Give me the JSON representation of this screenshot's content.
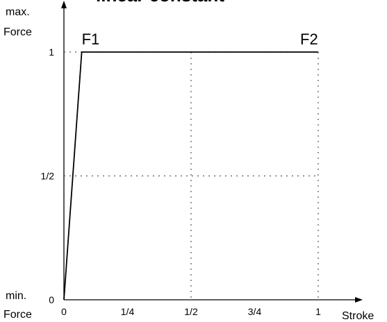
{
  "chart_data": {
    "type": "line",
    "title": "linear constant",
    "y_label_top": [
      "max.",
      "Force"
    ],
    "y_label_bottom": [
      "min.",
      "Force"
    ],
    "x_label": "Stroke",
    "annotations": [
      "F1",
      "F2"
    ],
    "x": [
      0,
      0.07,
      1
    ],
    "series": [
      {
        "color": "#000000",
        "values": [
          0,
          1,
          1
        ]
      }
    ],
    "xlim": [
      0,
      1
    ],
    "ylim": [
      0,
      1
    ],
    "xticks": [
      0,
      {
        "value": 0.25,
        "label": "1/4"
      },
      {
        "value": 0.5,
        "label": "1/2"
      },
      {
        "value": 0.75,
        "label": "3/4"
      },
      1
    ],
    "yticks": [
      0,
      {
        "value": 0.5,
        "label": "1/2"
      },
      1
    ],
    "xgrid": [
      0.5,
      1
    ]
  }
}
